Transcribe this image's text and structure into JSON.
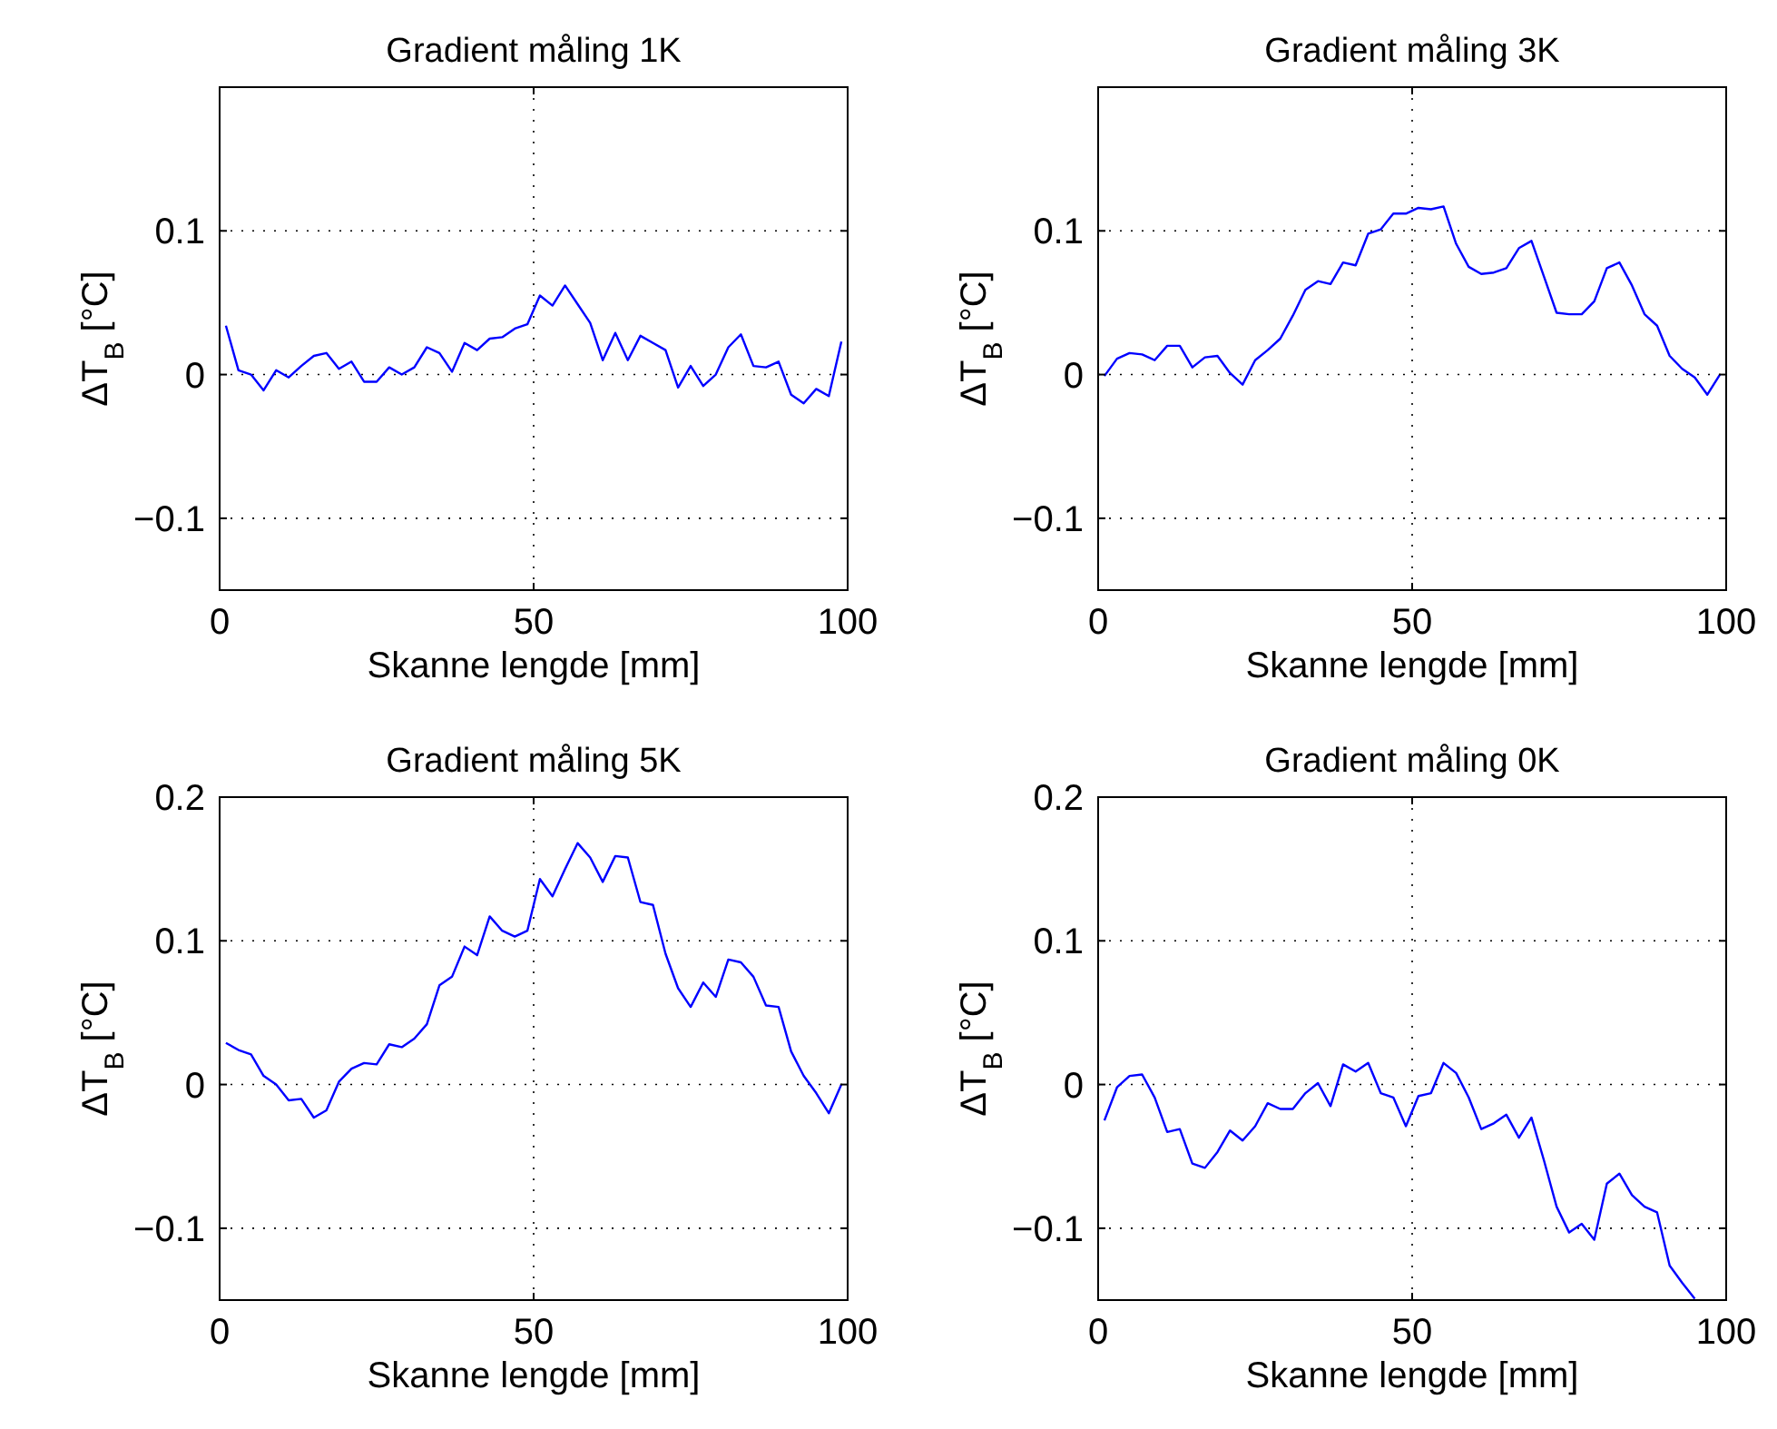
{
  "chart_data": [
    {
      "type": "line",
      "title": "Gradient måling 1K",
      "xlabel": "Skanne lengde [mm]",
      "ylabel": "ΔT$_{B}$ [°C]",
      "xlim": [
        0,
        100
      ],
      "xticks": [
        0,
        50,
        100
      ],
      "ylim": [
        -0.15,
        0.2
      ],
      "yticks": [
        -0.1,
        0,
        0.1
      ],
      "grid": true,
      "x": [
        1,
        3,
        5,
        7,
        9,
        11,
        13,
        15,
        17,
        19,
        21,
        23,
        25,
        27,
        29,
        31,
        33,
        35,
        37,
        39,
        41,
        43,
        45,
        47,
        49,
        51,
        53,
        55,
        57,
        59,
        61,
        63,
        65,
        67,
        69,
        71,
        73,
        75,
        77,
        79,
        81,
        83,
        85,
        87,
        89,
        91,
        93,
        95,
        97,
        99
      ],
      "series": [
        {
          "color": "#0000ff",
          "values": [
            0.034,
            0.003,
            0.0,
            -0.011,
            0.003,
            -0.002,
            0.006,
            0.013,
            0.015,
            0.004,
            0.009,
            -0.005,
            -0.005,
            0.005,
            0.0,
            0.005,
            0.019,
            0.015,
            0.002,
            0.022,
            0.017,
            0.025,
            0.026,
            0.032,
            0.035,
            0.055,
            0.048,
            0.062,
            0.049,
            0.036,
            0.01,
            0.029,
            0.01,
            0.027,
            0.022,
            0.017,
            -0.009,
            0.006,
            -0.008,
            0.0,
            0.019,
            0.028,
            0.006,
            0.005,
            0.009,
            -0.014,
            -0.02,
            -0.01,
            -0.015,
            0.023
          ]
        }
      ]
    },
    {
      "type": "line",
      "title": "Gradient måling 3K",
      "xlabel": "Skanne lengde [mm]",
      "ylabel": "ΔT$_{B}$ [°C]",
      "xlim": [
        0,
        100
      ],
      "xticks": [
        0,
        50,
        100
      ],
      "ylim": [
        -0.15,
        0.2
      ],
      "yticks": [
        -0.1,
        0,
        0.1
      ],
      "grid": true,
      "x": [
        1,
        3,
        5,
        7,
        9,
        11,
        13,
        15,
        17,
        19,
        21,
        23,
        25,
        27,
        29,
        31,
        33,
        35,
        37,
        39,
        41,
        43,
        45,
        47,
        49,
        51,
        53,
        55,
        57,
        59,
        61,
        63,
        65,
        67,
        69,
        71,
        73,
        75,
        77,
        79,
        81,
        83,
        85,
        87,
        89,
        91,
        93,
        95,
        97,
        99
      ],
      "series": [
        {
          "color": "#0000ff",
          "values": [
            -0.001,
            0.011,
            0.015,
            0.014,
            0.01,
            0.02,
            0.02,
            0.005,
            0.012,
            0.013,
            0.001,
            -0.007,
            0.01,
            0.017,
            0.025,
            0.041,
            0.059,
            0.065,
            0.063,
            0.078,
            0.076,
            0.098,
            0.101,
            0.112,
            0.112,
            0.116,
            0.115,
            0.117,
            0.091,
            0.075,
            0.07,
            0.071,
            0.074,
            0.088,
            0.093,
            0.068,
            0.043,
            0.042,
            0.042,
            0.051,
            0.074,
            0.078,
            0.062,
            0.042,
            0.034,
            0.013,
            0.004,
            -0.002,
            -0.014,
            0.0
          ]
        }
      ]
    },
    {
      "type": "line",
      "title": "Gradient måling 5K",
      "xlabel": "Skanne lengde [mm]",
      "ylabel": "ΔT$_{B}$ [°C]",
      "xlim": [
        0,
        100
      ],
      "xticks": [
        0,
        50,
        100
      ],
      "ylim": [
        -0.15,
        0.2
      ],
      "yticks": [
        -0.1,
        0,
        0.1,
        0.2
      ],
      "grid": true,
      "x": [
        1,
        3,
        5,
        7,
        9,
        11,
        13,
        15,
        17,
        19,
        21,
        23,
        25,
        27,
        29,
        31,
        33,
        35,
        37,
        39,
        41,
        43,
        45,
        47,
        49,
        51,
        53,
        55,
        57,
        59,
        61,
        63,
        65,
        67,
        69,
        71,
        73,
        75,
        77,
        79,
        81,
        83,
        85,
        87,
        89,
        91,
        93,
        95,
        97,
        99
      ],
      "series": [
        {
          "color": "#0000ff",
          "values": [
            0.029,
            0.024,
            0.021,
            0.006,
            0.0,
            -0.011,
            -0.01,
            -0.023,
            -0.018,
            0.002,
            0.011,
            0.015,
            0.014,
            0.028,
            0.026,
            0.032,
            0.042,
            0.069,
            0.075,
            0.096,
            0.09,
            0.117,
            0.107,
            0.103,
            0.107,
            0.143,
            0.131,
            0.15,
            0.168,
            0.158,
            0.141,
            0.159,
            0.158,
            0.127,
            0.125,
            0.091,
            0.067,
            0.054,
            0.071,
            0.061,
            0.087,
            0.085,
            0.075,
            0.055,
            0.054,
            0.023,
            0.006,
            -0.006,
            -0.02,
            0.0
          ]
        }
      ]
    },
    {
      "type": "line",
      "title": "Gradient måling 0K",
      "xlabel": "Skanne lengde [mm]",
      "ylabel": "ΔT$_{B}$ [°C]",
      "xlim": [
        0,
        100
      ],
      "xticks": [
        0,
        50,
        100
      ],
      "ylim": [
        -0.15,
        0.2
      ],
      "yticks": [
        -0.1,
        0,
        0.1,
        0.2
      ],
      "grid": true,
      "x": [
        1,
        3,
        5,
        7,
        9,
        11,
        13,
        15,
        17,
        19,
        21,
        23,
        25,
        27,
        29,
        31,
        33,
        35,
        37,
        39,
        41,
        43,
        45,
        47,
        49,
        51,
        53,
        55,
        57,
        59,
        61,
        63,
        65,
        67,
        69,
        71,
        73,
        75,
        77,
        79,
        81,
        83,
        85,
        87,
        89,
        91,
        93,
        95
      ],
      "series": [
        {
          "color": "#0000ff",
          "values": [
            -0.025,
            -0.002,
            0.006,
            0.007,
            -0.009,
            -0.033,
            -0.031,
            -0.055,
            -0.058,
            -0.047,
            -0.032,
            -0.039,
            -0.029,
            -0.013,
            -0.017,
            -0.017,
            -0.006,
            0.001,
            -0.015,
            0.014,
            0.009,
            0.015,
            -0.006,
            -0.009,
            -0.029,
            -0.008,
            -0.006,
            0.015,
            0.008,
            -0.009,
            -0.031,
            -0.027,
            -0.021,
            -0.037,
            -0.023,
            -0.053,
            -0.085,
            -0.103,
            -0.097,
            -0.108,
            -0.069,
            -0.062,
            -0.077,
            -0.085,
            -0.089,
            -0.126,
            -0.138,
            -0.149
          ]
        }
      ]
    }
  ]
}
